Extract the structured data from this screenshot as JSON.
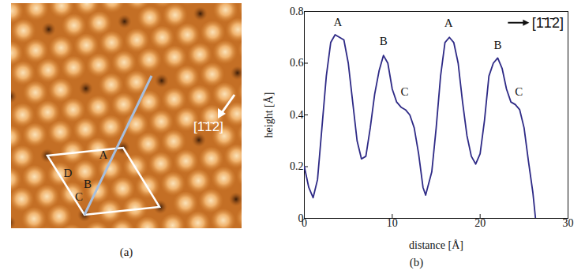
{
  "chart_data": {
    "type": "line",
    "caption": "(b)",
    "x_label": "distance [Å]",
    "y_label": "height [Å]",
    "xlim": [
      0,
      30
    ],
    "xticks": [
      0,
      10,
      20,
      30
    ],
    "ylim": [
      0,
      0.8
    ],
    "yticks": [
      0,
      0.2,
      0.4,
      0.6,
      0.8
    ],
    "color": "#2e2a86",
    "x": [
      0,
      0.5,
      1,
      1.5,
      2,
      2.5,
      3,
      3.5,
      4,
      4.5,
      5,
      5.5,
      6,
      6.5,
      7,
      7.5,
      8,
      8.5,
      9,
      9.5,
      10,
      10.5,
      11,
      11.5,
      12,
      12.5,
      13,
      13.5,
      13.8,
      14.5,
      15,
      15.5,
      16,
      16.5,
      17,
      17.5,
      18,
      18.5,
      19,
      19.5,
      20,
      20.5,
      21,
      21.5,
      22,
      22.5,
      23,
      23.5,
      24,
      24.5,
      25,
      25.5,
      26,
      26.3
    ],
    "values": [
      0.2,
      0.12,
      0.08,
      0.15,
      0.35,
      0.55,
      0.68,
      0.71,
      0.7,
      0.69,
      0.6,
      0.45,
      0.3,
      0.23,
      0.24,
      0.35,
      0.48,
      0.57,
      0.63,
      0.6,
      0.5,
      0.45,
      0.43,
      0.42,
      0.4,
      0.35,
      0.25,
      0.12,
      0.09,
      0.18,
      0.35,
      0.55,
      0.68,
      0.7,
      0.68,
      0.6,
      0.45,
      0.32,
      0.24,
      0.21,
      0.25,
      0.38,
      0.55,
      0.6,
      0.62,
      0.58,
      0.5,
      0.45,
      0.44,
      0.42,
      0.35,
      0.22,
      0.1,
      0.0
    ],
    "annotations": [
      {
        "text": "A",
        "x": 3.8,
        "y": 0.745
      },
      {
        "text": "B",
        "x": 9.0,
        "y": 0.67
      },
      {
        "text": "C",
        "x": 11.4,
        "y": 0.475
      },
      {
        "text": "A",
        "x": 16.4,
        "y": 0.74
      },
      {
        "text": "B",
        "x": 22.0,
        "y": 0.655
      },
      {
        "text": "C",
        "x": 24.4,
        "y": 0.475
      }
    ],
    "direction_label": {
      "text": "[1̄1̄2]",
      "x": 25.9,
      "y": 0.755
    }
  },
  "image_panel": {
    "caption": "(a)",
    "labels": [
      "A",
      "B",
      "C",
      "D"
    ],
    "direction_label": "[1̄1̄2]"
  }
}
